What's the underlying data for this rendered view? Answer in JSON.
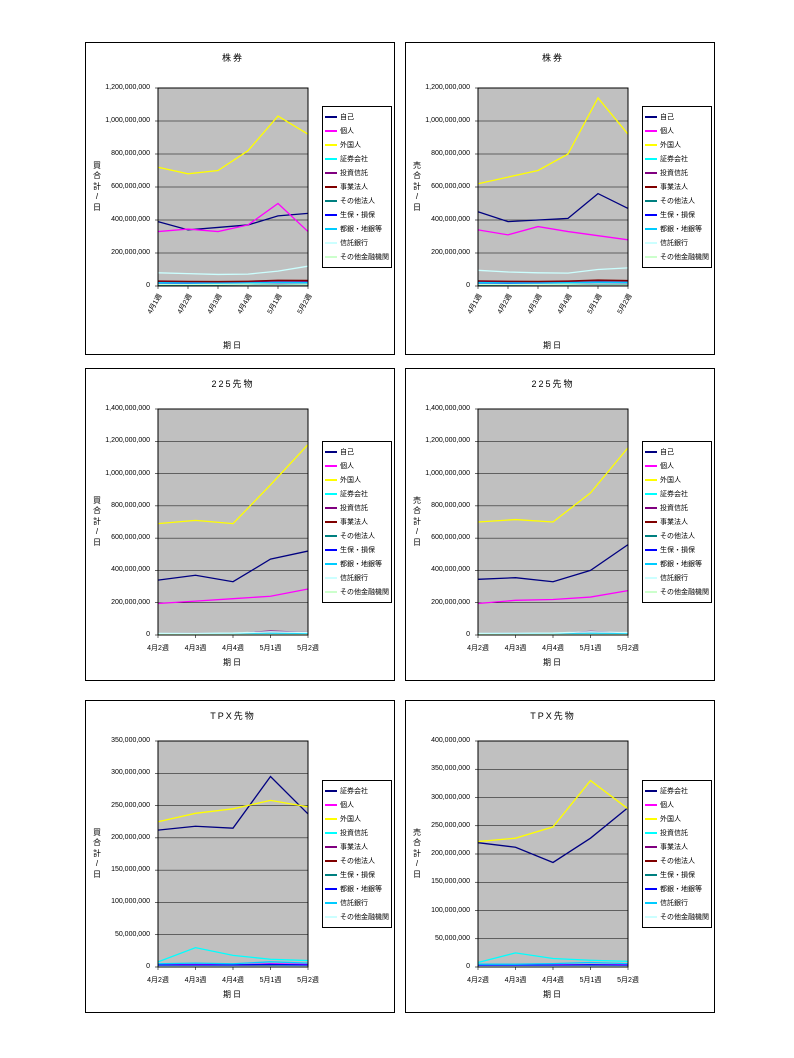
{
  "page": {
    "background": "#FFFFFF"
  },
  "styles": {
    "plot_background": "#C0C0C0",
    "grid_color": "#000000",
    "border_color": "#000000"
  },
  "chart_data": [
    {
      "type": "line",
      "title": "株券",
      "ylabel": "買合計/日",
      "xlabel": "期日",
      "ylim": [
        0,
        1200000000
      ],
      "ytick_step": 200000000,
      "rotated_x": true,
      "grid": true,
      "legend_position": "right",
      "categories": [
        "4月1週",
        "4月2週",
        "4月3週",
        "4月4週",
        "5月1週",
        "5月2週"
      ],
      "series": [
        {
          "name": "自己",
          "color": "#000080",
          "values": [
            390000000,
            340000000,
            355000000,
            370000000,
            425000000,
            440000000
          ]
        },
        {
          "name": "個人",
          "color": "#FF00FF",
          "values": [
            330000000,
            345000000,
            330000000,
            370000000,
            500000000,
            330000000
          ]
        },
        {
          "name": "外国人",
          "color": "#FFFF00",
          "values": [
            720000000,
            680000000,
            700000000,
            820000000,
            1030000000,
            920000000
          ]
        },
        {
          "name": "証券会社",
          "color": "#00FFFF",
          "values": [
            15000000,
            13000000,
            14000000,
            15000000,
            18000000,
            16000000
          ]
        },
        {
          "name": "投資信託",
          "color": "#800080",
          "values": [
            25000000,
            22000000,
            24000000,
            26000000,
            30000000,
            28000000
          ]
        },
        {
          "name": "事業法人",
          "color": "#800000",
          "values": [
            30000000,
            28000000,
            27000000,
            29000000,
            35000000,
            34000000
          ]
        },
        {
          "name": "その他法人",
          "color": "#008080",
          "values": [
            8000000,
            7000000,
            8000000,
            9000000,
            10000000,
            9000000
          ]
        },
        {
          "name": "生保・損保",
          "color": "#0000FF",
          "values": [
            12000000,
            11000000,
            11000000,
            12000000,
            14000000,
            13000000
          ]
        },
        {
          "name": "都銀・地銀等",
          "color": "#00CCFF",
          "values": [
            20000000,
            18000000,
            17000000,
            19000000,
            22000000,
            21000000
          ]
        },
        {
          "name": "信託銀行",
          "color": "#CCFFFF",
          "values": [
            80000000,
            75000000,
            70000000,
            72000000,
            90000000,
            120000000
          ]
        },
        {
          "name": "その他金融機関",
          "color": "#CCFFCC",
          "values": [
            10000000,
            9000000,
            10000000,
            11000000,
            12000000,
            11000000
          ]
        }
      ]
    },
    {
      "type": "line",
      "title": "株券",
      "ylabel": "売合計/日",
      "xlabel": "期日",
      "ylim": [
        0,
        1200000000
      ],
      "ytick_step": 200000000,
      "rotated_x": true,
      "grid": true,
      "legend_position": "right",
      "categories": [
        "4月1週",
        "4月2週",
        "4月3週",
        "4月4週",
        "5月1週",
        "5月2週"
      ],
      "series": [
        {
          "name": "自己",
          "color": "#000080",
          "values": [
            450000000,
            390000000,
            400000000,
            410000000,
            560000000,
            470000000
          ]
        },
        {
          "name": "個人",
          "color": "#FF00FF",
          "values": [
            340000000,
            310000000,
            360000000,
            330000000,
            305000000,
            280000000
          ]
        },
        {
          "name": "外国人",
          "color": "#FFFF00",
          "values": [
            620000000,
            660000000,
            700000000,
            800000000,
            1140000000,
            920000000
          ]
        },
        {
          "name": "証券会社",
          "color": "#00FFFF",
          "values": [
            14000000,
            12000000,
            13000000,
            14000000,
            17000000,
            15000000
          ]
        },
        {
          "name": "投資信託",
          "color": "#800080",
          "values": [
            24000000,
            23000000,
            25000000,
            27000000,
            32000000,
            29000000
          ]
        },
        {
          "name": "事業法人",
          "color": "#800000",
          "values": [
            31000000,
            29000000,
            28000000,
            30000000,
            36000000,
            33000000
          ]
        },
        {
          "name": "その他法人",
          "color": "#008080",
          "values": [
            8000000,
            8000000,
            9000000,
            9000000,
            11000000,
            10000000
          ]
        },
        {
          "name": "生保・損保",
          "color": "#0000FF",
          "values": [
            12000000,
            11000000,
            12000000,
            13000000,
            15000000,
            14000000
          ]
        },
        {
          "name": "都銀・地銀等",
          "color": "#00CCFF",
          "values": [
            21000000,
            19000000,
            18000000,
            20000000,
            23000000,
            22000000
          ]
        },
        {
          "name": "信託銀行",
          "color": "#CCFFFF",
          "values": [
            95000000,
            85000000,
            80000000,
            78000000,
            100000000,
            110000000
          ]
        },
        {
          "name": "その他金融機関",
          "color": "#CCFFCC",
          "values": [
            10000000,
            9000000,
            10000000,
            11000000,
            13000000,
            12000000
          ]
        }
      ]
    },
    {
      "type": "line",
      "title": "225先物",
      "ylabel": "買合計/日",
      "xlabel": "期日",
      "ylim": [
        0,
        1400000000
      ],
      "ytick_step": 200000000,
      "rotated_x": false,
      "grid": true,
      "legend_position": "right",
      "categories": [
        "4月2週",
        "4月3週",
        "4月4週",
        "5月1週",
        "5月2週"
      ],
      "series": [
        {
          "name": "自己",
          "color": "#000080",
          "values": [
            340000000,
            370000000,
            330000000,
            470000000,
            520000000
          ]
        },
        {
          "name": "個人",
          "color": "#FF00FF",
          "values": [
            195000000,
            210000000,
            225000000,
            240000000,
            285000000
          ]
        },
        {
          "name": "外国人",
          "color": "#FFFF00",
          "values": [
            690000000,
            710000000,
            690000000,
            930000000,
            1180000000
          ]
        },
        {
          "name": "証券会社",
          "color": "#00FFFF",
          "values": [
            5000000,
            6000000,
            5000000,
            8000000,
            7000000
          ]
        },
        {
          "name": "投資信託",
          "color": "#800080",
          "values": [
            8000000,
            9000000,
            8000000,
            25000000,
            15000000
          ]
        },
        {
          "name": "事業法人",
          "color": "#800000",
          "values": [
            6000000,
            6000000,
            7000000,
            8000000,
            8000000
          ]
        },
        {
          "name": "その他法人",
          "color": "#008080",
          "values": [
            3000000,
            3000000,
            4000000,
            5000000,
            4000000
          ]
        },
        {
          "name": "生保・損保",
          "color": "#0000FF",
          "values": [
            4000000,
            4000000,
            5000000,
            6000000,
            5000000
          ]
        },
        {
          "name": "都銀・地銀等",
          "color": "#00CCFF",
          "values": [
            5000000,
            5000000,
            6000000,
            10000000,
            8000000
          ]
        },
        {
          "name": "信託銀行",
          "color": "#CCFFFF",
          "values": [
            10000000,
            10000000,
            12000000,
            20000000,
            15000000
          ]
        },
        {
          "name": "その他金融機関",
          "color": "#CCFFCC",
          "values": [
            2000000,
            2000000,
            3000000,
            4000000,
            3000000
          ]
        }
      ]
    },
    {
      "type": "line",
      "title": "225先物",
      "ylabel": "売合計/日",
      "xlabel": "期日",
      "ylim": [
        0,
        1400000000
      ],
      "ytick_step": 200000000,
      "rotated_x": false,
      "grid": true,
      "legend_position": "right",
      "categories": [
        "4月2週",
        "4月3週",
        "4月4週",
        "5月1週",
        "5月2週"
      ],
      "series": [
        {
          "name": "自己",
          "color": "#000080",
          "values": [
            345000000,
            355000000,
            330000000,
            400000000,
            560000000
          ]
        },
        {
          "name": "個人",
          "color": "#FF00FF",
          "values": [
            195000000,
            215000000,
            220000000,
            235000000,
            275000000
          ]
        },
        {
          "name": "外国人",
          "color": "#FFFF00",
          "values": [
            700000000,
            715000000,
            700000000,
            880000000,
            1160000000
          ]
        },
        {
          "name": "証券会社",
          "color": "#00FFFF",
          "values": [
            5000000,
            6000000,
            5000000,
            8000000,
            7000000
          ]
        },
        {
          "name": "投資信託",
          "color": "#800080",
          "values": [
            8000000,
            9000000,
            8000000,
            22000000,
            14000000
          ]
        },
        {
          "name": "事業法人",
          "color": "#800000",
          "values": [
            6000000,
            7000000,
            7000000,
            8000000,
            8000000
          ]
        },
        {
          "name": "その他法人",
          "color": "#008080",
          "values": [
            3000000,
            3000000,
            4000000,
            5000000,
            4000000
          ]
        },
        {
          "name": "生保・損保",
          "color": "#0000FF",
          "values": [
            4000000,
            4000000,
            5000000,
            6000000,
            5000000
          ]
        },
        {
          "name": "都銀・地銀等",
          "color": "#00CCFF",
          "values": [
            5000000,
            6000000,
            6000000,
            10000000,
            8000000
          ]
        },
        {
          "name": "信託銀行",
          "color": "#CCFFFF",
          "values": [
            10000000,
            11000000,
            12000000,
            20000000,
            15000000
          ]
        },
        {
          "name": "その他金融機関",
          "color": "#CCFFCC",
          "values": [
            2000000,
            2000000,
            3000000,
            4000000,
            3000000
          ]
        }
      ]
    },
    {
      "type": "line",
      "title": "TPX先物",
      "ylabel": "買合計/日",
      "xlabel": "期日",
      "ylim": [
        0,
        350000000
      ],
      "ytick_step": 50000000,
      "rotated_x": false,
      "grid": true,
      "legend_position": "right",
      "categories": [
        "4月2週",
        "4月3週",
        "4月4週",
        "5月1週",
        "5月2週"
      ],
      "series": [
        {
          "name": "証券会社",
          "color": "#000080",
          "values": [
            212000000,
            218000000,
            215000000,
            295000000,
            237000000
          ]
        },
        {
          "name": "個人",
          "color": "#FF00FF",
          "values": [
            3000000,
            4000000,
            3000000,
            5000000,
            4000000
          ]
        },
        {
          "name": "外国人",
          "color": "#FFFF00",
          "values": [
            225000000,
            238000000,
            245000000,
            258000000,
            248000000
          ]
        },
        {
          "name": "投資信託",
          "color": "#00FFFF",
          "values": [
            8000000,
            30000000,
            18000000,
            12000000,
            10000000
          ]
        },
        {
          "name": "事業法人",
          "color": "#800080",
          "values": [
            2000000,
            2000000,
            2000000,
            3000000,
            2000000
          ]
        },
        {
          "name": "その他法人",
          "color": "#800000",
          "values": [
            1000000,
            1000000,
            1000000,
            2000000,
            1000000
          ]
        },
        {
          "name": "生保・損保",
          "color": "#008080",
          "values": [
            2000000,
            2000000,
            3000000,
            3000000,
            2000000
          ]
        },
        {
          "name": "都銀・地銀等",
          "color": "#0000FF",
          "values": [
            3000000,
            3000000,
            3000000,
            4000000,
            3000000
          ]
        },
        {
          "name": "信託銀行",
          "color": "#00CCFF",
          "values": [
            5000000,
            6000000,
            5000000,
            8000000,
            6000000
          ]
        },
        {
          "name": "その他金融機関",
          "color": "#CCFFFF",
          "values": [
            1000000,
            1000000,
            1000000,
            1000000,
            1000000
          ]
        }
      ]
    },
    {
      "type": "line",
      "title": "TPX先物",
      "ylabel": "売合計/日",
      "xlabel": "期日",
      "ylim": [
        0,
        400000000
      ],
      "ytick_step": 50000000,
      "rotated_x": false,
      "grid": true,
      "legend_position": "right",
      "categories": [
        "4月2週",
        "4月3週",
        "4月4週",
        "5月1週",
        "5月2週"
      ],
      "series": [
        {
          "name": "証券会社",
          "color": "#000080",
          "values": [
            220000000,
            212000000,
            185000000,
            228000000,
            282000000
          ]
        },
        {
          "name": "個人",
          "color": "#FF00FF",
          "values": [
            3000000,
            3000000,
            4000000,
            4000000,
            4000000
          ]
        },
        {
          "name": "外国人",
          "color": "#FFFF00",
          "values": [
            222000000,
            228000000,
            248000000,
            330000000,
            280000000
          ]
        },
        {
          "name": "投資信託",
          "color": "#00FFFF",
          "values": [
            8000000,
            25000000,
            15000000,
            12000000,
            10000000
          ]
        },
        {
          "name": "事業法人",
          "color": "#800080",
          "values": [
            2000000,
            2000000,
            2000000,
            3000000,
            2000000
          ]
        },
        {
          "name": "その他法人",
          "color": "#800000",
          "values": [
            1000000,
            1000000,
            1000000,
            2000000,
            1000000
          ]
        },
        {
          "name": "生保・損保",
          "color": "#008080",
          "values": [
            2000000,
            2000000,
            3000000,
            3000000,
            2000000
          ]
        },
        {
          "name": "都銀・地銀等",
          "color": "#0000FF",
          "values": [
            3000000,
            3000000,
            3000000,
            4000000,
            3000000
          ]
        },
        {
          "name": "信託銀行",
          "color": "#00CCFF",
          "values": [
            5000000,
            5000000,
            6000000,
            8000000,
            6000000
          ]
        },
        {
          "name": "その他金融機関",
          "color": "#CCFFFF",
          "values": [
            1000000,
            1000000,
            1000000,
            1000000,
            1000000
          ]
        }
      ]
    }
  ]
}
